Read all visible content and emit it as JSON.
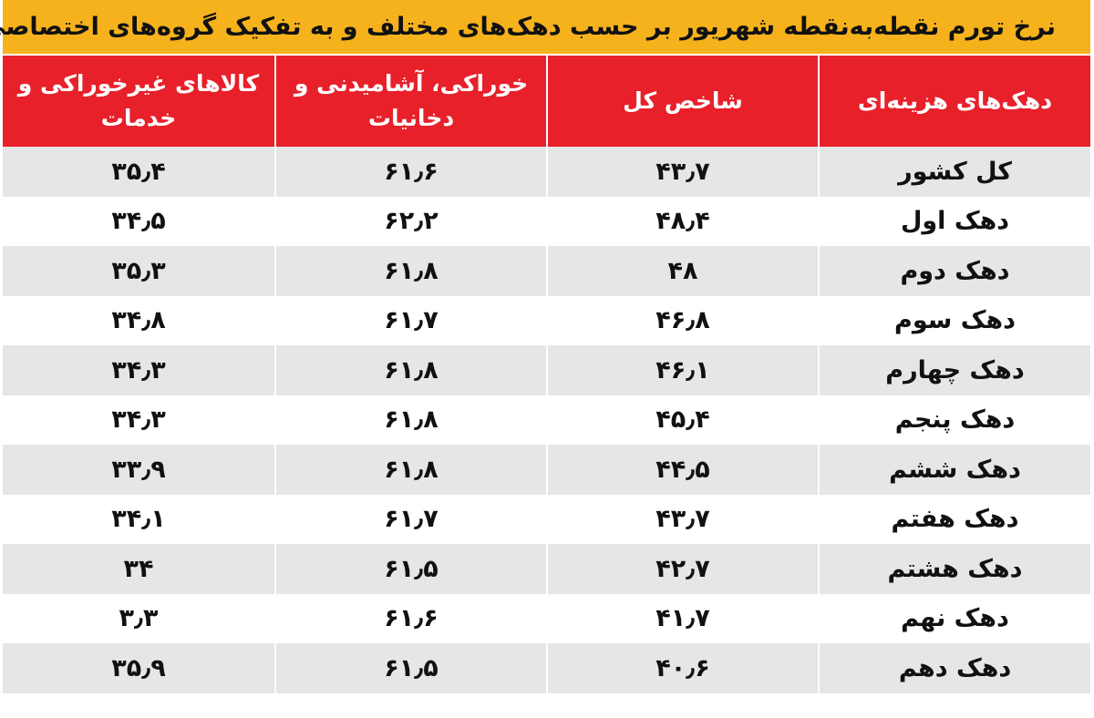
{
  "title": "نرخ تورم نقطه‌به‌نقطه شهریور بر حسب دهک‌های مختلف و به تفکیک گروه‌های اختصاصی",
  "colors": {
    "title_bg": "#f6b21c",
    "header_bg": "#e8202a",
    "row_shade": "#e6e6e8"
  },
  "table": {
    "headers": [
      "دهک‌های هزینه‌ای",
      "شاخص کل",
      "خوراکی، آشامیدنی و دخانیات",
      "کالاهای غیرخوراکی و خدمات"
    ],
    "rows": [
      [
        "کل کشور",
        "۴۳٫۷",
        "۶۱٫۶",
        "۳۵٫۴"
      ],
      [
        "دهک اول",
        "۴۸٫۴",
        "۶۲٫۲",
        "۳۴٫۵"
      ],
      [
        "دهک دوم",
        "۴۸",
        "۶۱٫۸",
        "۳۵٫۳"
      ],
      [
        "دهک سوم",
        "۴۶٫۸",
        "۶۱٫۷",
        "۳۴٫۸"
      ],
      [
        "دهک چهارم",
        "۴۶٫۱",
        "۶۱٫۸",
        "۳۴٫۳"
      ],
      [
        "دهک پنجم",
        "۴۵٫۴",
        "۶۱٫۸",
        "۳۴٫۳"
      ],
      [
        "دهک ششم",
        "۴۴٫۵",
        "۶۱٫۸",
        "۳۳٫۹"
      ],
      [
        "دهک هفتم",
        "۴۳٫۷",
        "۶۱٫۷",
        "۳۴٫۱"
      ],
      [
        "دهک هشتم",
        "۴۲٫۷",
        "۶۱٫۵",
        "۳۴"
      ],
      [
        "دهک نهم",
        "۴۱٫۷",
        "۶۱٫۶",
        "۳٫۳"
      ],
      [
        "دهک دهم",
        "۴۰٫۶",
        "۶۱٫۵",
        "۳۵٫۹"
      ]
    ]
  }
}
